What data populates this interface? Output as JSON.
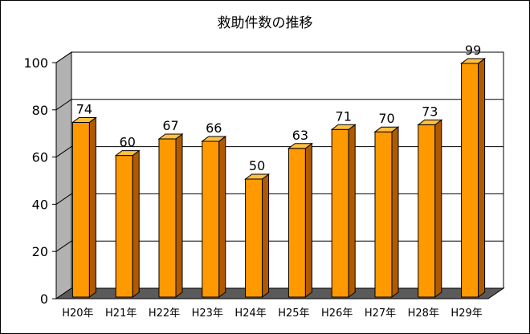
{
  "chart_data": {
    "type": "bar",
    "title": "救助件数の推移",
    "categories": [
      "H20年",
      "H21年",
      "H22年",
      "H23年",
      "H24年",
      "H25年",
      "H26年",
      "H27年",
      "H28年",
      "H29年"
    ],
    "values": [
      74,
      60,
      67,
      66,
      50,
      63,
      71,
      70,
      73,
      99
    ],
    "ylim": [
      0,
      100
    ],
    "yticks": [
      0,
      20,
      40,
      60,
      80,
      100
    ],
    "grid": true,
    "legend": "none",
    "style": "3d",
    "bar_color": "#ff9900",
    "bar_side_color": "#b05a00",
    "bar_top_color": "#ffc040",
    "wall_color": "#ffffff",
    "left_wall_color": "#b2b2b2",
    "floor_color": "#5a5a5a"
  }
}
